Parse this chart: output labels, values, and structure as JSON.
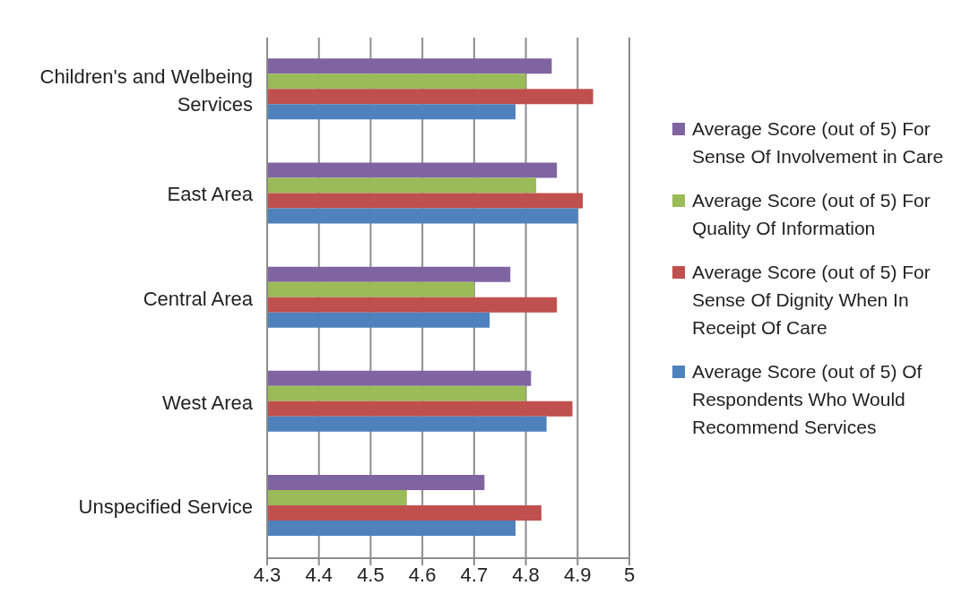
{
  "chart_data": {
    "type": "bar",
    "orientation": "horizontal",
    "categories": [
      "Children's and Welbeing Services",
      "East Area",
      "Central Area",
      "West Area",
      "Unspecified Service"
    ],
    "series": [
      {
        "name": "Average Score (out of 5) For Sense Of Involvement in Care",
        "color": "#8064a2",
        "values": [
          4.85,
          4.86,
          4.77,
          4.81,
          4.72
        ]
      },
      {
        "name": "Average Score (out of 5) For Quality Of Information",
        "color": "#9bbb59",
        "values": [
          4.8,
          4.82,
          4.7,
          4.8,
          4.57
        ]
      },
      {
        "name": "Average Score (out of 5) For Sense Of Dignity When In Receipt Of Care",
        "color": "#c0504d",
        "values": [
          4.93,
          4.91,
          4.86,
          4.89,
          4.83
        ]
      },
      {
        "name": "Average Score (out of 5) Of Respondents Who Would Recommend Services",
        "color": "#4f81bd",
        "values": [
          4.78,
          4.9,
          4.73,
          4.84,
          4.78
        ]
      }
    ],
    "xlim": [
      4.3,
      5
    ],
    "xticks": [
      4.3,
      4.4,
      4.5,
      4.6,
      4.7,
      4.8,
      4.9,
      5
    ],
    "grid": "x",
    "legend": "right"
  }
}
